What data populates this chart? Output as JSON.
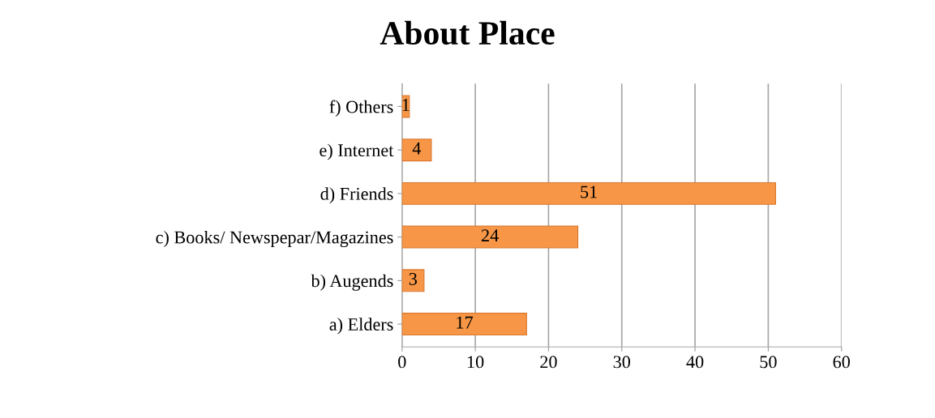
{
  "chart_data": {
    "type": "bar",
    "orientation": "horizontal",
    "title": "About Place",
    "categories": [
      "f) Others",
      "e) Internet",
      "d) Friends",
      "c) Books/ Newspepar/Magazines",
      "b) Augends",
      "a) Elders"
    ],
    "values": [
      1,
      4,
      51,
      24,
      3,
      17
    ],
    "color": "#f79646",
    "xlim": [
      0,
      60
    ],
    "xticks": [
      0,
      10,
      20,
      30,
      40,
      50,
      60
    ],
    "grid": "x",
    "data_labels": true
  }
}
